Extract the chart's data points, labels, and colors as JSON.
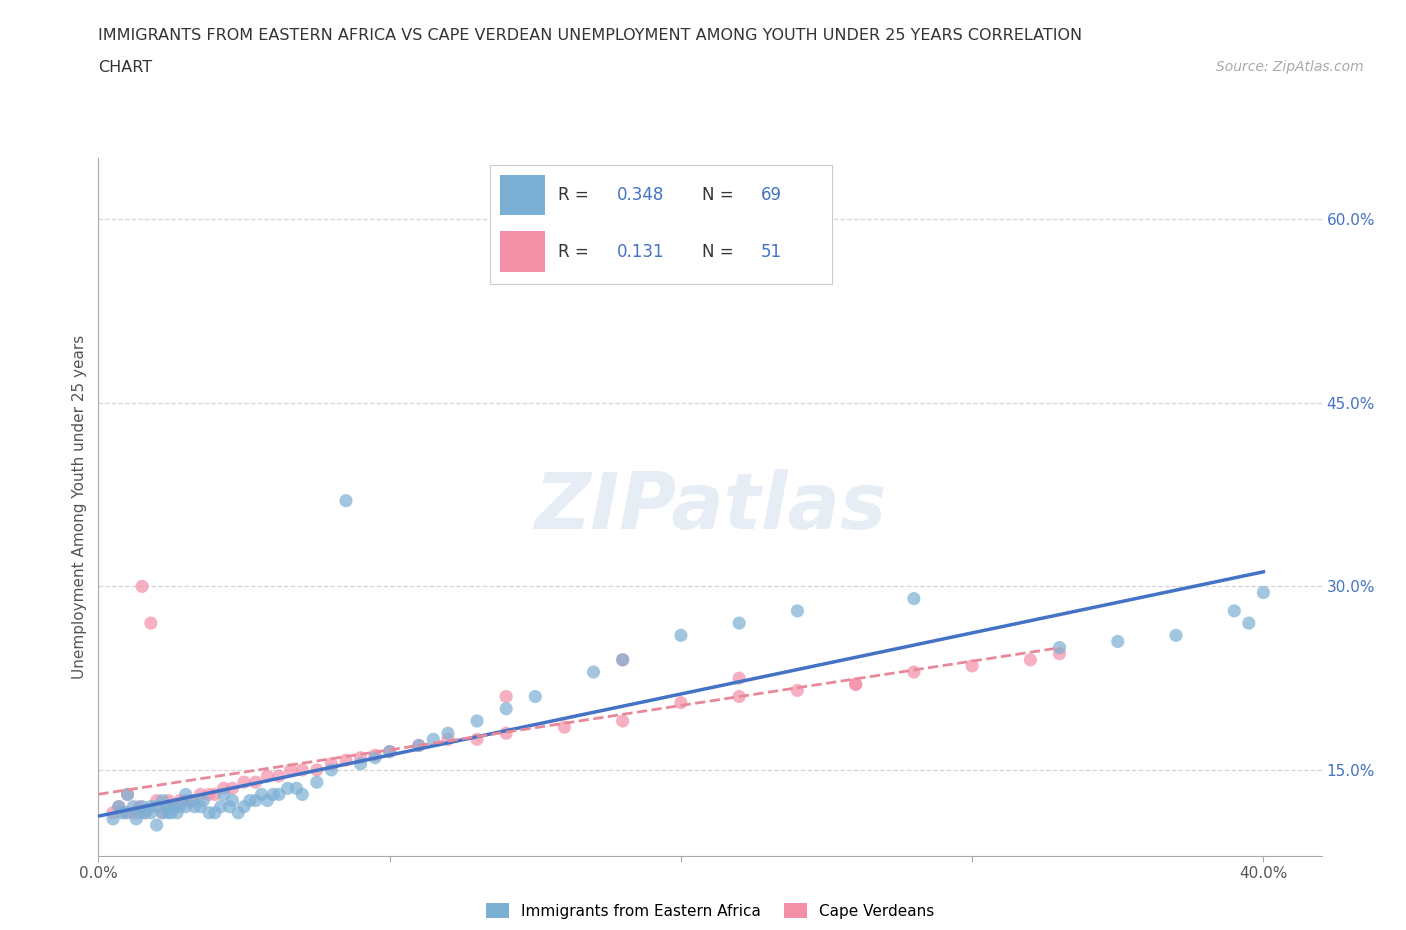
{
  "title_line1": "IMMIGRANTS FROM EASTERN AFRICA VS CAPE VERDEAN UNEMPLOYMENT AMONG YOUTH UNDER 25 YEARS CORRELATION",
  "title_line2": "CHART",
  "source": "Source: ZipAtlas.com",
  "ylabel": "Unemployment Among Youth under 25 years",
  "watermark": "ZIPatlas",
  "blue_color": "#4472c4",
  "pink_line_color": "#e8899a",
  "blue_scatter_color": "#7bafd4",
  "pink_scatter_color": "#f48fa8",
  "R_blue": 0.348,
  "N_blue": 69,
  "R_pink": 0.131,
  "N_pink": 51,
  "xlim": [
    0.0,
    0.42
  ],
  "ylim": [
    0.08,
    0.65
  ],
  "blue_scatter_x": [
    0.005,
    0.007,
    0.008,
    0.01,
    0.01,
    0.012,
    0.013,
    0.014,
    0.015,
    0.016,
    0.018,
    0.018,
    0.02,
    0.02,
    0.022,
    0.022,
    0.024,
    0.024,
    0.025,
    0.026,
    0.027,
    0.028,
    0.03,
    0.03,
    0.032,
    0.033,
    0.035,
    0.036,
    0.038,
    0.04,
    0.042,
    0.043,
    0.045,
    0.046,
    0.048,
    0.05,
    0.052,
    0.054,
    0.056,
    0.058,
    0.06,
    0.062,
    0.065,
    0.068,
    0.07,
    0.075,
    0.08,
    0.085,
    0.09,
    0.095,
    0.1,
    0.11,
    0.115,
    0.12,
    0.13,
    0.14,
    0.15,
    0.17,
    0.18,
    0.2,
    0.22,
    0.24,
    0.28,
    0.33,
    0.37,
    0.39,
    0.4,
    0.35,
    0.395
  ],
  "blue_scatter_y": [
    0.11,
    0.12,
    0.115,
    0.115,
    0.13,
    0.12,
    0.11,
    0.115,
    0.12,
    0.115,
    0.115,
    0.12,
    0.105,
    0.12,
    0.115,
    0.125,
    0.115,
    0.12,
    0.115,
    0.12,
    0.115,
    0.12,
    0.12,
    0.13,
    0.125,
    0.12,
    0.12,
    0.125,
    0.115,
    0.115,
    0.12,
    0.13,
    0.12,
    0.125,
    0.115,
    0.12,
    0.125,
    0.125,
    0.13,
    0.125,
    0.13,
    0.13,
    0.135,
    0.135,
    0.13,
    0.14,
    0.15,
    0.37,
    0.155,
    0.16,
    0.165,
    0.17,
    0.175,
    0.18,
    0.19,
    0.2,
    0.21,
    0.23,
    0.24,
    0.26,
    0.27,
    0.28,
    0.29,
    0.25,
    0.26,
    0.28,
    0.295,
    0.255,
    0.27
  ],
  "pink_scatter_x": [
    0.005,
    0.007,
    0.009,
    0.01,
    0.012,
    0.014,
    0.015,
    0.016,
    0.018,
    0.02,
    0.022,
    0.024,
    0.026,
    0.028,
    0.03,
    0.032,
    0.035,
    0.038,
    0.04,
    0.043,
    0.046,
    0.05,
    0.054,
    0.058,
    0.062,
    0.066,
    0.07,
    0.075,
    0.08,
    0.085,
    0.09,
    0.095,
    0.1,
    0.11,
    0.12,
    0.13,
    0.14,
    0.16,
    0.18,
    0.2,
    0.22,
    0.24,
    0.26,
    0.28,
    0.3,
    0.32,
    0.33,
    0.26,
    0.18,
    0.14,
    0.22
  ],
  "pink_scatter_y": [
    0.115,
    0.12,
    0.115,
    0.13,
    0.115,
    0.12,
    0.3,
    0.115,
    0.27,
    0.125,
    0.115,
    0.125,
    0.12,
    0.125,
    0.125,
    0.125,
    0.13,
    0.13,
    0.13,
    0.135,
    0.135,
    0.14,
    0.14,
    0.145,
    0.145,
    0.15,
    0.15,
    0.15,
    0.155,
    0.158,
    0.16,
    0.162,
    0.165,
    0.17,
    0.175,
    0.175,
    0.18,
    0.185,
    0.19,
    0.205,
    0.21,
    0.215,
    0.22,
    0.23,
    0.235,
    0.24,
    0.245,
    0.22,
    0.24,
    0.21,
    0.225
  ],
  "grid_color": "#cccccc",
  "background_color": "#ffffff"
}
